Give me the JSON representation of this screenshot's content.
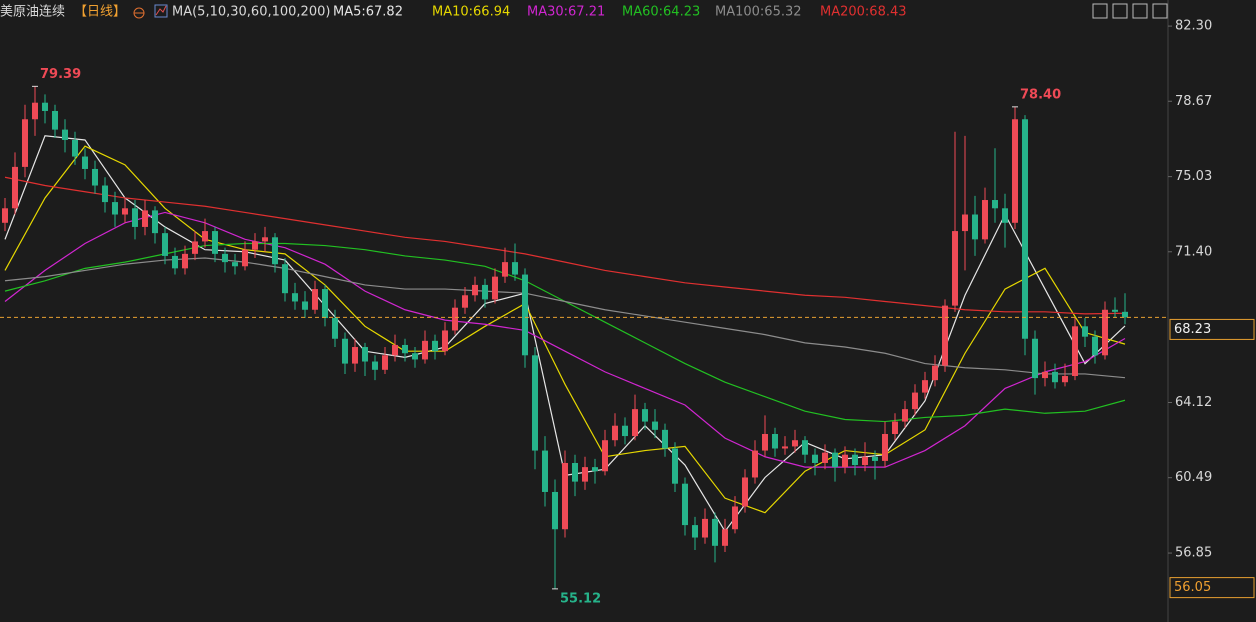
{
  "chart_data": {
    "type": "candlestick",
    "title": "美原油连续",
    "period": "【日线】",
    "indicator": "MA(5,10,30,60,100,200)",
    "up_color": "#ef4a56",
    "down_color": "#26b38a",
    "ylim": [
      53.52,
      83.56
    ],
    "yticks": [
      {
        "value": 82.3,
        "label": "82.30"
      },
      78.67,
      75.03,
      {
        "value": 71.4,
        "label": "71.40"
      },
      64.12,
      60.49,
      56.85
    ],
    "last_price": 68.23,
    "cursor_price": 56.05,
    "annotations": [
      79.39,
      {
        "value": 78.4,
        "label": "78.40"
      },
      55.12
    ],
    "candles": [
      [
        72.8,
        74.0,
        72.4,
        73.5
      ],
      [
        73.5,
        76.2,
        73.2,
        75.5
      ],
      [
        75.5,
        78.5,
        75.0,
        77.8
      ],
      [
        77.8,
        79.39,
        77.0,
        78.6
      ],
      [
        78.6,
        79.0,
        77.6,
        78.2
      ],
      [
        78.2,
        78.5,
        76.9,
        77.3
      ],
      [
        77.3,
        77.8,
        76.2,
        76.8
      ],
      [
        76.8,
        77.2,
        75.6,
        76.0
      ],
      [
        76.0,
        76.4,
        74.9,
        75.4
      ],
      [
        75.4,
        75.8,
        74.2,
        74.6
      ],
      [
        74.6,
        75.0,
        73.3,
        73.8
      ],
      [
        73.8,
        74.3,
        72.6,
        73.2
      ],
      [
        73.2,
        74.0,
        72.8,
        73.5
      ],
      [
        73.5,
        73.9,
        72.0,
        72.6
      ],
      [
        72.6,
        73.9,
        72.2,
        73.4
      ],
      [
        73.4,
        73.6,
        71.8,
        72.3
      ],
      [
        72.3,
        72.6,
        70.8,
        71.2
      ],
      [
        71.2,
        71.6,
        70.3,
        70.6
      ],
      [
        70.6,
        71.7,
        70.3,
        71.3
      ],
      [
        71.3,
        72.4,
        71.0,
        71.9
      ],
      [
        71.9,
        73.0,
        71.6,
        72.4
      ],
      [
        72.4,
        72.6,
        70.9,
        71.3
      ],
      [
        71.3,
        71.6,
        70.4,
        70.9
      ],
      [
        70.9,
        71.3,
        70.3,
        70.7
      ],
      [
        70.7,
        71.9,
        70.5,
        71.5
      ],
      [
        71.5,
        72.3,
        71.1,
        71.9
      ],
      [
        71.9,
        72.6,
        71.4,
        72.1
      ],
      [
        72.1,
        72.3,
        70.4,
        70.8
      ],
      [
        70.8,
        71.1,
        69.0,
        69.4
      ],
      [
        69.4,
        69.9,
        68.6,
        69.0
      ],
      [
        69.0,
        69.5,
        68.2,
        68.6
      ],
      [
        68.6,
        70.0,
        68.4,
        69.6
      ],
      [
        69.6,
        69.8,
        67.8,
        68.2
      ],
      [
        68.2,
        68.6,
        66.8,
        67.2
      ],
      [
        67.2,
        67.5,
        65.5,
        66.0
      ],
      [
        66.0,
        67.2,
        65.6,
        66.8
      ],
      [
        66.8,
        67.0,
        65.4,
        66.1
      ],
      [
        66.1,
        66.4,
        65.2,
        65.7
      ],
      [
        65.7,
        66.8,
        65.5,
        66.4
      ],
      [
        66.4,
        67.4,
        66.1,
        66.9
      ],
      [
        66.9,
        67.2,
        66.1,
        66.5
      ],
      [
        66.5,
        66.8,
        65.8,
        66.2
      ],
      [
        66.2,
        67.6,
        66.0,
        67.1
      ],
      [
        67.1,
        67.4,
        66.2,
        66.6
      ],
      [
        66.6,
        68.0,
        66.4,
        67.6
      ],
      [
        67.6,
        69.1,
        67.4,
        68.7
      ],
      [
        68.7,
        69.7,
        68.4,
        69.3
      ],
      [
        69.3,
        70.2,
        69.0,
        69.8
      ],
      [
        69.8,
        70.1,
        68.7,
        69.1
      ],
      [
        69.1,
        70.6,
        68.9,
        70.2
      ],
      [
        70.2,
        71.6,
        69.9,
        70.9
      ],
      [
        70.9,
        71.8,
        70.0,
        70.3
      ],
      [
        70.3,
        70.6,
        65.8,
        66.4
      ],
      [
        66.4,
        66.8,
        60.9,
        61.8
      ],
      [
        61.8,
        62.5,
        59.1,
        59.8
      ],
      [
        59.8,
        60.4,
        55.12,
        58.0
      ],
      [
        58.0,
        61.8,
        57.6,
        61.2
      ],
      [
        61.2,
        61.6,
        59.6,
        60.3
      ],
      [
        60.3,
        61.5,
        59.9,
        61.0
      ],
      [
        61.0,
        61.4,
        60.2,
        60.8
      ],
      [
        60.8,
        62.8,
        60.6,
        62.3
      ],
      [
        62.3,
        63.6,
        62.0,
        63.0
      ],
      [
        63.0,
        63.4,
        62.1,
        62.5
      ],
      [
        62.5,
        64.5,
        62.3,
        63.8
      ],
      [
        63.8,
        64.1,
        62.8,
        63.2
      ],
      [
        63.2,
        63.8,
        62.4,
        62.8
      ],
      [
        62.8,
        63.1,
        61.5,
        61.9
      ],
      [
        61.9,
        62.2,
        59.8,
        60.2
      ],
      [
        60.2,
        60.5,
        57.7,
        58.2
      ],
      [
        58.2,
        58.6,
        57.0,
        57.6
      ],
      [
        57.6,
        59.0,
        57.3,
        58.5
      ],
      [
        58.5,
        58.8,
        56.4,
        57.2
      ],
      [
        57.2,
        58.5,
        56.9,
        58.0
      ],
      [
        58.0,
        59.6,
        57.8,
        59.1
      ],
      [
        59.1,
        60.9,
        58.8,
        60.5
      ],
      [
        60.5,
        62.3,
        60.2,
        61.8
      ],
      [
        61.8,
        63.5,
        61.5,
        62.6
      ],
      [
        62.6,
        62.9,
        61.5,
        61.9
      ],
      [
        61.9,
        62.5,
        61.6,
        62.0
      ],
      [
        62.0,
        62.8,
        61.7,
        62.3
      ],
      [
        62.3,
        62.5,
        61.2,
        61.6
      ],
      [
        61.6,
        61.9,
        60.6,
        61.2
      ],
      [
        61.2,
        62.1,
        60.9,
        61.7
      ],
      [
        61.7,
        61.9,
        60.3,
        61.0
      ],
      [
        61.0,
        62.0,
        60.7,
        61.6
      ],
      [
        61.6,
        61.9,
        60.6,
        61.1
      ],
      [
        61.1,
        62.2,
        60.8,
        61.5
      ],
      [
        61.5,
        61.8,
        60.4,
        61.3
      ],
      [
        61.3,
        63.2,
        61.0,
        62.6
      ],
      [
        62.6,
        63.6,
        62.3,
        63.2
      ],
      [
        63.2,
        64.2,
        62.9,
        63.8
      ],
      [
        63.8,
        65.0,
        63.5,
        64.6
      ],
      [
        64.6,
        65.6,
        64.3,
        65.2
      ],
      [
        65.2,
        66.4,
        64.9,
        65.9
      ],
      [
        65.9,
        69.1,
        65.6,
        68.8
      ],
      [
        68.8,
        77.2,
        68.5,
        72.4
      ],
      [
        72.4,
        77.0,
        70.5,
        73.2
      ],
      [
        73.2,
        74.1,
        71.2,
        72.0
      ],
      [
        72.0,
        74.5,
        71.8,
        73.9
      ],
      [
        73.9,
        76.4,
        72.8,
        73.5
      ],
      [
        73.5,
        74.2,
        71.6,
        72.8
      ],
      [
        72.8,
        78.4,
        72.5,
        77.8
      ],
      [
        77.8,
        78.0,
        66.4,
        67.2
      ],
      [
        67.2,
        67.6,
        64.5,
        65.3
      ],
      [
        65.3,
        66.1,
        64.9,
        65.6
      ],
      [
        65.6,
        66.0,
        64.8,
        65.1
      ],
      [
        65.1,
        66.0,
        64.9,
        65.4
      ],
      [
        65.4,
        68.2,
        65.2,
        67.8
      ],
      [
        67.8,
        68.2,
        66.8,
        67.3
      ],
      [
        67.3,
        67.6,
        66.0,
        66.4
      ],
      [
        66.4,
        69.0,
        66.2,
        68.6
      ],
      [
        68.6,
        69.2,
        68.2,
        68.5
      ],
      [
        68.5,
        69.4,
        67.9,
        68.23
      ]
    ],
    "series": [
      {
        "name": "MA5:67.82",
        "color": "#e6e6e6",
        "x": [
          0,
          4,
          8,
          12,
          16,
          20,
          24,
          28,
          32,
          36,
          40,
          44,
          48,
          52,
          56,
          60,
          64,
          68,
          72,
          76,
          80,
          84,
          88,
          92,
          96,
          100,
          104,
          108,
          112
        ],
        "values": [
          72.0,
          77.0,
          76.8,
          74.0,
          72.6,
          71.5,
          71.4,
          71.0,
          68.8,
          66.6,
          66.3,
          66.8,
          68.9,
          69.4,
          60.6,
          60.9,
          63.0,
          61.1,
          57.9,
          60.5,
          62.2,
          61.4,
          61.6,
          64.2,
          69.3,
          73.2,
          69.6,
          66.0,
          67.82
        ]
      },
      {
        "name": "MA10:66.94",
        "color": "#e6d800",
        "x": [
          0,
          4,
          8,
          12,
          16,
          20,
          24,
          28,
          32,
          36,
          40,
          44,
          48,
          52,
          56,
          60,
          64,
          68,
          72,
          76,
          80,
          84,
          88,
          92,
          96,
          100,
          104,
          108,
          112
        ],
        "values": [
          70.5,
          74.0,
          76.5,
          75.6,
          73.5,
          72.0,
          71.5,
          71.3,
          69.8,
          67.8,
          66.6,
          66.6,
          67.8,
          68.9,
          65.0,
          61.5,
          61.8,
          62.0,
          59.5,
          58.8,
          60.8,
          61.8,
          61.6,
          62.8,
          66.5,
          69.6,
          70.6,
          67.5,
          66.94
        ]
      },
      {
        "name": "MA30:67.21",
        "color": "#d026d0",
        "x": [
          0,
          4,
          8,
          12,
          16,
          20,
          24,
          28,
          32,
          36,
          40,
          44,
          48,
          52,
          56,
          60,
          64,
          68,
          72,
          76,
          80,
          84,
          88,
          92,
          96,
          100,
          104,
          108,
          112
        ],
        "values": [
          69.0,
          70.5,
          71.8,
          72.8,
          73.3,
          72.8,
          72.0,
          71.6,
          70.8,
          69.5,
          68.6,
          68.1,
          67.9,
          67.6,
          66.6,
          65.6,
          64.8,
          64.0,
          62.4,
          61.5,
          61.0,
          61.0,
          61.0,
          61.8,
          63.0,
          64.8,
          65.6,
          66.1,
          67.21
        ]
      },
      {
        "name": "MA60:64.23",
        "color": "#22c022",
        "x": [
          0,
          4,
          8,
          12,
          16,
          20,
          24,
          28,
          32,
          36,
          40,
          44,
          48,
          52,
          56,
          60,
          64,
          68,
          72,
          76,
          80,
          84,
          88,
          92,
          96,
          100,
          104,
          108,
          112
        ],
        "values": [
          69.5,
          70.0,
          70.6,
          70.9,
          71.3,
          71.7,
          71.8,
          71.8,
          71.7,
          71.5,
          71.2,
          71.0,
          70.7,
          70.0,
          69.0,
          68.0,
          67.0,
          66.0,
          65.1,
          64.4,
          63.7,
          63.3,
          63.2,
          63.4,
          63.5,
          63.8,
          63.6,
          63.7,
          64.23
        ]
      },
      {
        "name": "MA100:65.32",
        "color": "#8c8c8c",
        "x": [
          0,
          4,
          8,
          12,
          16,
          20,
          24,
          28,
          32,
          36,
          40,
          44,
          48,
          52,
          56,
          60,
          64,
          68,
          72,
          76,
          80,
          84,
          88,
          92,
          96,
          100,
          104,
          108,
          112
        ],
        "values": [
          70.0,
          70.2,
          70.5,
          70.8,
          71.0,
          71.1,
          70.9,
          70.6,
          70.2,
          69.8,
          69.6,
          69.6,
          69.5,
          69.4,
          69.0,
          68.6,
          68.3,
          68.0,
          67.7,
          67.4,
          67.0,
          66.8,
          66.5,
          66.0,
          65.8,
          65.7,
          65.5,
          65.5,
          65.32
        ]
      },
      {
        "name": "MA200:68.43",
        "color": "#e03030",
        "x": [
          0,
          4,
          8,
          12,
          16,
          20,
          24,
          28,
          32,
          36,
          40,
          44,
          48,
          52,
          56,
          60,
          64,
          68,
          72,
          76,
          80,
          84,
          88,
          92,
          96,
          100,
          104,
          108,
          112
        ],
        "values": [
          75.0,
          74.6,
          74.3,
          74.0,
          73.8,
          73.6,
          73.3,
          73.0,
          72.7,
          72.4,
          72.1,
          71.9,
          71.6,
          71.3,
          70.9,
          70.5,
          70.2,
          69.9,
          69.7,
          69.5,
          69.3,
          69.2,
          69.0,
          68.8,
          68.6,
          68.5,
          68.5,
          68.4,
          68.43
        ]
      }
    ]
  }
}
